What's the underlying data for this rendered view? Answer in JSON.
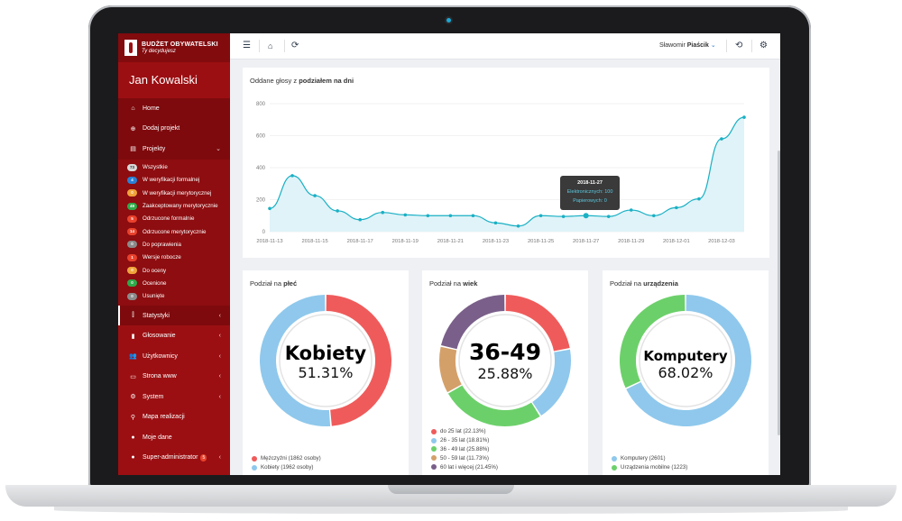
{
  "app": {
    "logo_title": "BUDŻET OBYWATELSKI",
    "logo_subtitle": "Ty decydujesz"
  },
  "sidebar": {
    "username": "Jan Kowalski",
    "items": [
      {
        "label": "Home",
        "icon": "home-icon"
      },
      {
        "label": "Dodaj projekt",
        "icon": "plus-circle-icon"
      },
      {
        "label": "Projekty",
        "icon": "file-icon"
      }
    ],
    "sub_items": [
      {
        "label": "Wszystkie",
        "count": "73",
        "color": "#d9d9d9",
        "text": "#333"
      },
      {
        "label": "W weryfikacji formalnej",
        "count": "4",
        "color": "#2a7fd4",
        "text": "#fff"
      },
      {
        "label": "W weryfikacji merytorycznej",
        "count": "0",
        "color": "#f0a33a",
        "text": "#fff"
      },
      {
        "label": "Zaakceptowany merytorycznie",
        "count": "49",
        "color": "#2ea94a",
        "text": "#fff"
      },
      {
        "label": "Odrzucone formalnie",
        "count": "5",
        "color": "#e9412c",
        "text": "#fff"
      },
      {
        "label": "Odrzucone merytorycznie",
        "count": "14",
        "color": "#e9412c",
        "text": "#fff"
      },
      {
        "label": "Do poprawienia",
        "count": "0",
        "color": "#8b8b8b",
        "text": "#fff"
      },
      {
        "label": "Wersje robocze",
        "count": "1",
        "color": "#e9412c",
        "text": "#fff"
      },
      {
        "label": "Do oceny",
        "count": "0",
        "color": "#f0a33a",
        "text": "#fff"
      },
      {
        "label": "Ocenione",
        "count": "0",
        "color": "#2ea94a",
        "text": "#fff"
      },
      {
        "label": "Usunięte",
        "count": "0",
        "color": "#8b8b8b",
        "text": "#fff"
      }
    ],
    "items2": [
      {
        "label": "Statystyki",
        "icon": "chart-icon"
      },
      {
        "label": "Głosowanie",
        "icon": "bookmark-icon"
      },
      {
        "label": "Użytkownicy",
        "icon": "users-icon"
      },
      {
        "label": "Strona www",
        "icon": "laptop-icon"
      },
      {
        "label": "System",
        "icon": "gear-icon"
      },
      {
        "label": "Mapa realizacji",
        "icon": "map-marker-icon"
      },
      {
        "label": "Moje dane",
        "icon": "user-icon"
      },
      {
        "label": "Super-administrator",
        "icon": "user-shield-icon",
        "badge": "5"
      }
    ]
  },
  "header": {
    "user_first": "Sławomir",
    "user_last": "Piaścik"
  },
  "line_chart": {
    "title_prefix": "Oddane głosy z ",
    "title_bold": "podziałem na dni",
    "tooltip": {
      "date": "2018-11-27",
      "line1": "Elektronicznych: 100",
      "line2": "Papierowych: 0"
    }
  },
  "gender": {
    "title_prefix": "Podział na ",
    "title_bold": "płeć",
    "center_label": "Kobiety",
    "center_pct": "51.31%",
    "legend": [
      {
        "label": "Mężczyźni (1862 osoby)",
        "color": "#ef5b5b"
      },
      {
        "label": "Kobiety (1962 osoby)",
        "color": "#8fc8ec"
      }
    ]
  },
  "age": {
    "title_prefix": "Podział na ",
    "title_bold": "wiek",
    "center_label": "36-49",
    "center_pct": "25.88%",
    "legend": [
      {
        "label": "do 25 lat (22.13%)",
        "color": "#ef5b5b"
      },
      {
        "label": "26 - 35 lat (18.81%)",
        "color": "#8fc8ec"
      },
      {
        "label": "36 - 49 lat (25.88%)",
        "color": "#6cd06a"
      },
      {
        "label": "50 - 59 lat (11.73%)",
        "color": "#d4a06a"
      },
      {
        "label": "60 lat i więcej (21.45%)",
        "color": "#7a5f8a"
      }
    ]
  },
  "device": {
    "title_prefix": "Podział na ",
    "title_bold": "urządzenia",
    "center_label": "Komputery",
    "center_pct": "68.02%",
    "legend": [
      {
        "label": "Komputery (2601)",
        "color": "#8fc8ec"
      },
      {
        "label": "Urządzenia mobilne (1223)",
        "color": "#6cd06a"
      }
    ]
  },
  "chart_data": [
    {
      "type": "area",
      "title": "Oddane głosy z podziałem na dni",
      "x": [
        "2018-11-13",
        "2018-11-14",
        "2018-11-15",
        "2018-11-16",
        "2018-11-17",
        "2018-11-18",
        "2018-11-19",
        "2018-11-20",
        "2018-11-21",
        "2018-11-22",
        "2018-11-23",
        "2018-11-24",
        "2018-11-25",
        "2018-11-26",
        "2018-11-27",
        "2018-11-28",
        "2018-11-29",
        "2018-11-30",
        "2018-12-01",
        "2018-12-02",
        "2018-12-03",
        "2018-12-04"
      ],
      "tick_labels": [
        "2018-11-13",
        "2018-11-15",
        "2018-11-17",
        "2018-11-19",
        "2018-11-21",
        "2018-11-23",
        "2018-11-25",
        "2018-11-27",
        "2018-11-29",
        "2018-12-01",
        "2018-12-03"
      ],
      "y": [
        145,
        350,
        225,
        130,
        75,
        120,
        105,
        100,
        100,
        100,
        55,
        35,
        100,
        95,
        100,
        95,
        135,
        100,
        150,
        205,
        580,
        715
      ],
      "yticks": [
        0,
        200,
        400,
        600,
        800
      ],
      "ylim": [
        0,
        800
      ],
      "color": "#1ab0c4",
      "grid": true
    },
    {
      "type": "pie",
      "title": "Podział na płeć",
      "labels": [
        "Mężczyźni",
        "Kobiety"
      ],
      "values": [
        1862,
        1962
      ],
      "colors": [
        "#ef5b5b",
        "#8fc8ec"
      ]
    },
    {
      "type": "pie",
      "title": "Podział na wiek",
      "labels": [
        "do 25 lat",
        "26 - 35 lat",
        "36 - 49 lat",
        "50 - 59 lat",
        "60 lat i więcej"
      ],
      "values": [
        22.13,
        18.81,
        25.88,
        11.73,
        21.45
      ],
      "colors": [
        "#ef5b5b",
        "#8fc8ec",
        "#6cd06a",
        "#d4a06a",
        "#7a5f8a"
      ]
    },
    {
      "type": "pie",
      "title": "Podział na urządzenia",
      "labels": [
        "Komputery",
        "Urządzenia mobilne"
      ],
      "values": [
        2601,
        1223
      ],
      "colors": [
        "#8fc8ec",
        "#6cd06a"
      ]
    }
  ]
}
